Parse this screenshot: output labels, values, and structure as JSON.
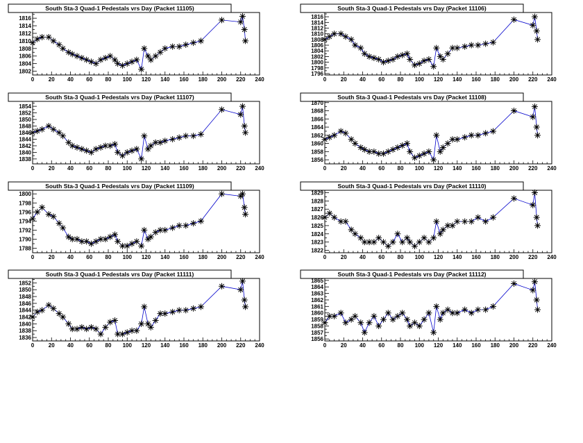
{
  "colors": {
    "line": "#0000cc",
    "marker": "#000000"
  },
  "chart_data": [
    {
      "type": "line",
      "title": "South Sta-3 Quad-1 Pedestals vrs Day (Packet 11105)",
      "xlim": [
        0,
        240
      ],
      "ylim": [
        1801,
        1817.5
      ],
      "xticks": [
        0,
        20,
        40,
        60,
        80,
        100,
        120,
        140,
        160,
        180,
        200,
        220,
        240
      ],
      "yticks": [
        1802,
        1804,
        1806,
        1808,
        1810,
        1812,
        1814,
        1816
      ],
      "x": [
        0,
        5,
        10,
        17,
        22,
        28,
        32,
        38,
        42,
        47,
        52,
        57,
        62,
        67,
        72,
        77,
        82,
        87,
        90,
        95,
        100,
        105,
        110,
        115,
        118,
        122,
        125,
        130,
        135,
        140,
        148,
        155,
        162,
        170,
        178,
        200,
        220,
        222,
        224,
        225
      ],
      "y": [
        1809.5,
        1810.5,
        1811,
        1811,
        1810,
        1809,
        1808,
        1807,
        1806.5,
        1806,
        1805.5,
        1805,
        1804.5,
        1804,
        1805,
        1805.5,
        1806,
        1805,
        1804,
        1803.5,
        1804,
        1804.5,
        1805,
        1802.5,
        1808,
        1806,
        1805,
        1806,
        1807,
        1808,
        1808.5,
        1808.5,
        1809,
        1809.5,
        1810,
        1815.5,
        1815,
        1816.5,
        1813,
        1810
      ]
    },
    {
      "type": "line",
      "title": "South Sta-3 Quad-1 Pedestals vrs Day (Packet 11106)",
      "xlim": [
        0,
        240
      ],
      "ylim": [
        1795.5,
        1817.5
      ],
      "xticks": [
        0,
        20,
        40,
        60,
        80,
        100,
        120,
        140,
        160,
        180,
        200,
        220,
        240
      ],
      "yticks": [
        1796,
        1798,
        1800,
        1802,
        1804,
        1806,
        1808,
        1810,
        1812,
        1814,
        1816
      ],
      "x": [
        0,
        5,
        10,
        17,
        22,
        28,
        32,
        38,
        42,
        47,
        52,
        57,
        62,
        67,
        72,
        77,
        82,
        87,
        90,
        95,
        100,
        105,
        110,
        115,
        118,
        122,
        125,
        130,
        135,
        140,
        148,
        155,
        162,
        170,
        178,
        200,
        220,
        222,
        224,
        225
      ],
      "y": [
        1808,
        1809,
        1810,
        1810,
        1809,
        1808,
        1806,
        1805,
        1803,
        1802,
        1801.5,
        1801,
        1800,
        1800.5,
        1801,
        1802,
        1802.5,
        1803,
        1801,
        1799,
        1799.5,
        1800.5,
        1801,
        1798.5,
        1805,
        1802,
        1801,
        1803,
        1805,
        1805,
        1805.5,
        1806,
        1806,
        1806.5,
        1807,
        1815,
        1813,
        1816,
        1811,
        1808
      ]
    },
    {
      "type": "line",
      "title": "South Sta-3 Quad-1 Pedestals vrs Day (Packet 11107)",
      "xlim": [
        0,
        240
      ],
      "ylim": [
        1836.5,
        1855.5
      ],
      "xticks": [
        0,
        20,
        40,
        60,
        80,
        100,
        120,
        140,
        160,
        180,
        200,
        220,
        240
      ],
      "yticks": [
        1838,
        1840,
        1842,
        1844,
        1846,
        1848,
        1850,
        1852,
        1854
      ],
      "x": [
        0,
        5,
        10,
        17,
        22,
        28,
        32,
        38,
        42,
        47,
        52,
        57,
        62,
        67,
        72,
        77,
        82,
        87,
        90,
        95,
        100,
        105,
        110,
        115,
        118,
        122,
        125,
        130,
        135,
        140,
        148,
        155,
        162,
        170,
        178,
        200,
        220,
        222,
        224,
        225
      ],
      "y": [
        1846,
        1846.5,
        1847,
        1848,
        1847,
        1846,
        1845,
        1843,
        1842,
        1841.5,
        1841,
        1840.5,
        1840,
        1841,
        1841.5,
        1842,
        1842,
        1842.5,
        1840,
        1839,
        1840,
        1840.5,
        1841,
        1838,
        1845,
        1841,
        1842,
        1843,
        1843,
        1843.5,
        1844,
        1844.5,
        1845,
        1845,
        1845.5,
        1853,
        1851.5,
        1854,
        1848,
        1846
      ]
    },
    {
      "type": "line",
      "title": "South Sta-3 Quad-1 Pedestals vrs Day (Packet 11108)",
      "xlim": [
        0,
        240
      ],
      "ylim": [
        1855,
        1870.3
      ],
      "xticks": [
        0,
        20,
        40,
        60,
        80,
        100,
        120,
        140,
        160,
        180,
        200,
        220,
        240
      ],
      "yticks": [
        1856,
        1858,
        1860,
        1862,
        1864,
        1866,
        1868,
        1870
      ],
      "x": [
        0,
        5,
        10,
        17,
        22,
        28,
        32,
        38,
        42,
        47,
        52,
        57,
        62,
        67,
        72,
        77,
        82,
        87,
        90,
        95,
        100,
        105,
        110,
        115,
        118,
        122,
        125,
        130,
        135,
        140,
        148,
        155,
        162,
        170,
        178,
        200,
        220,
        222,
        224,
        225
      ],
      "y": [
        1861,
        1861.5,
        1862,
        1863,
        1862.5,
        1861,
        1860,
        1859,
        1858.5,
        1858,
        1858,
        1857.5,
        1857.5,
        1858,
        1858.5,
        1859,
        1859.5,
        1860,
        1858,
        1856.5,
        1857,
        1857.5,
        1858,
        1856,
        1862,
        1858,
        1859,
        1860,
        1861,
        1861,
        1861.5,
        1862,
        1862,
        1862.5,
        1863,
        1868,
        1866.5,
        1869,
        1864,
        1862
      ]
    },
    {
      "type": "line",
      "title": "South Sta-3 Quad-1 Pedestals vrs Day (Packet 11109)",
      "xlim": [
        0,
        240
      ],
      "ylim": [
        1787,
        1800.8
      ],
      "xticks": [
        0,
        20,
        40,
        60,
        80,
        100,
        120,
        140,
        160,
        180,
        200,
        220,
        240
      ],
      "yticks": [
        1788,
        1790,
        1792,
        1794,
        1796,
        1798,
        1800
      ],
      "x": [
        0,
        5,
        10,
        17,
        22,
        28,
        32,
        38,
        42,
        47,
        52,
        57,
        62,
        67,
        72,
        77,
        82,
        87,
        90,
        95,
        100,
        105,
        110,
        115,
        118,
        122,
        125,
        130,
        135,
        140,
        148,
        155,
        162,
        170,
        178,
        200,
        220,
        222,
        224,
        225
      ],
      "y": [
        1794.5,
        1796,
        1797,
        1795.5,
        1795,
        1793.5,
        1792.5,
        1790.5,
        1790,
        1790,
        1789.5,
        1789.5,
        1789,
        1789.5,
        1790,
        1790,
        1790.5,
        1791,
        1789.5,
        1788.5,
        1788.5,
        1789,
        1789.5,
        1788.5,
        1792,
        1790,
        1790.5,
        1791.5,
        1792,
        1792,
        1792.5,
        1793,
        1793,
        1793.5,
        1794,
        1800,
        1799.5,
        1800,
        1797,
        1795.5
      ]
    },
    {
      "type": "line",
      "title": "South Sta-3 Quad-1 Pedestals vrs Day (Packet 11110)",
      "xlim": [
        0,
        240
      ],
      "ylim": [
        1821.7,
        1829.3
      ],
      "xticks": [
        0,
        20,
        40,
        60,
        80,
        100,
        120,
        140,
        160,
        180,
        200,
        220,
        240
      ],
      "yticks": [
        1822,
        1823,
        1824,
        1825,
        1826,
        1827,
        1828,
        1829
      ],
      "x": [
        0,
        5,
        10,
        17,
        22,
        28,
        32,
        38,
        42,
        47,
        52,
        57,
        62,
        67,
        72,
        77,
        82,
        87,
        90,
        95,
        100,
        105,
        110,
        115,
        118,
        122,
        125,
        130,
        135,
        140,
        148,
        155,
        162,
        170,
        178,
        200,
        220,
        222,
        224,
        225
      ],
      "y": [
        1826,
        1826.5,
        1826,
        1825.5,
        1825.5,
        1824.5,
        1824,
        1823.5,
        1823,
        1823,
        1823,
        1823.5,
        1823,
        1822.5,
        1823,
        1824,
        1823,
        1823.5,
        1823,
        1822.5,
        1823,
        1823.5,
        1823,
        1823.5,
        1825.5,
        1824,
        1824.5,
        1825,
        1825,
        1825.5,
        1825.5,
        1825.5,
        1826,
        1825.5,
        1826,
        1828.3,
        1827.5,
        1829,
        1826,
        1825
      ]
    },
    {
      "type": "line",
      "title": "South Sta-3 Quad-1 Pedestals vrs Day (Packet 11111)",
      "xlim": [
        0,
        240
      ],
      "ylim": [
        1835,
        1853.3
      ],
      "xticks": [
        0,
        20,
        40,
        60,
        80,
        100,
        120,
        140,
        160,
        180,
        200,
        220,
        240
      ],
      "yticks": [
        1836,
        1838,
        1840,
        1842,
        1844,
        1846,
        1848,
        1850,
        1852
      ],
      "x": [
        0,
        5,
        10,
        17,
        22,
        28,
        32,
        38,
        42,
        47,
        52,
        57,
        62,
        67,
        72,
        77,
        82,
        87,
        90,
        95,
        100,
        105,
        110,
        115,
        118,
        122,
        125,
        130,
        135,
        140,
        148,
        155,
        162,
        170,
        178,
        200,
        220,
        222,
        224,
        225
      ],
      "y": [
        1842,
        1843.5,
        1844,
        1845.5,
        1844.5,
        1843,
        1842,
        1840,
        1838.5,
        1838.5,
        1839,
        1838.5,
        1839,
        1838.5,
        1837,
        1839,
        1840.5,
        1841,
        1837,
        1837,
        1837.5,
        1838,
        1838,
        1840,
        1845,
        1840,
        1839,
        1841,
        1843,
        1843,
        1843.5,
        1844,
        1844,
        1844.5,
        1845,
        1851,
        1850,
        1852.5,
        1847,
        1845
      ]
    },
    {
      "type": "line",
      "title": "South Sta-3 Quad-1 Pedestals vrs Day (Packet 11112)",
      "xlim": [
        0,
        240
      ],
      "ylim": [
        1855.7,
        1865.3
      ],
      "xticks": [
        0,
        20,
        40,
        60,
        80,
        100,
        120,
        140,
        160,
        180,
        200,
        220,
        240
      ],
      "yticks": [
        1856,
        1857,
        1858,
        1859,
        1860,
        1861,
        1862,
        1863,
        1864,
        1865
      ],
      "x": [
        0,
        5,
        10,
        17,
        22,
        28,
        32,
        38,
        42,
        47,
        52,
        57,
        62,
        67,
        72,
        77,
        82,
        87,
        90,
        95,
        100,
        105,
        110,
        115,
        118,
        122,
        125,
        130,
        135,
        140,
        148,
        155,
        162,
        170,
        178,
        200,
        220,
        222,
        224,
        225
      ],
      "y": [
        1858.5,
        1859.5,
        1859.5,
        1860,
        1858.5,
        1859,
        1859.5,
        1858.5,
        1857,
        1858.5,
        1859.5,
        1858,
        1859,
        1860,
        1859,
        1859.5,
        1860,
        1859,
        1858,
        1858.5,
        1858,
        1859,
        1860,
        1857,
        1861,
        1859,
        1860,
        1860.5,
        1860,
        1860,
        1860.5,
        1860,
        1860.5,
        1860.5,
        1861,
        1864.5,
        1863.5,
        1864.8,
        1862,
        1860.5
      ]
    }
  ]
}
